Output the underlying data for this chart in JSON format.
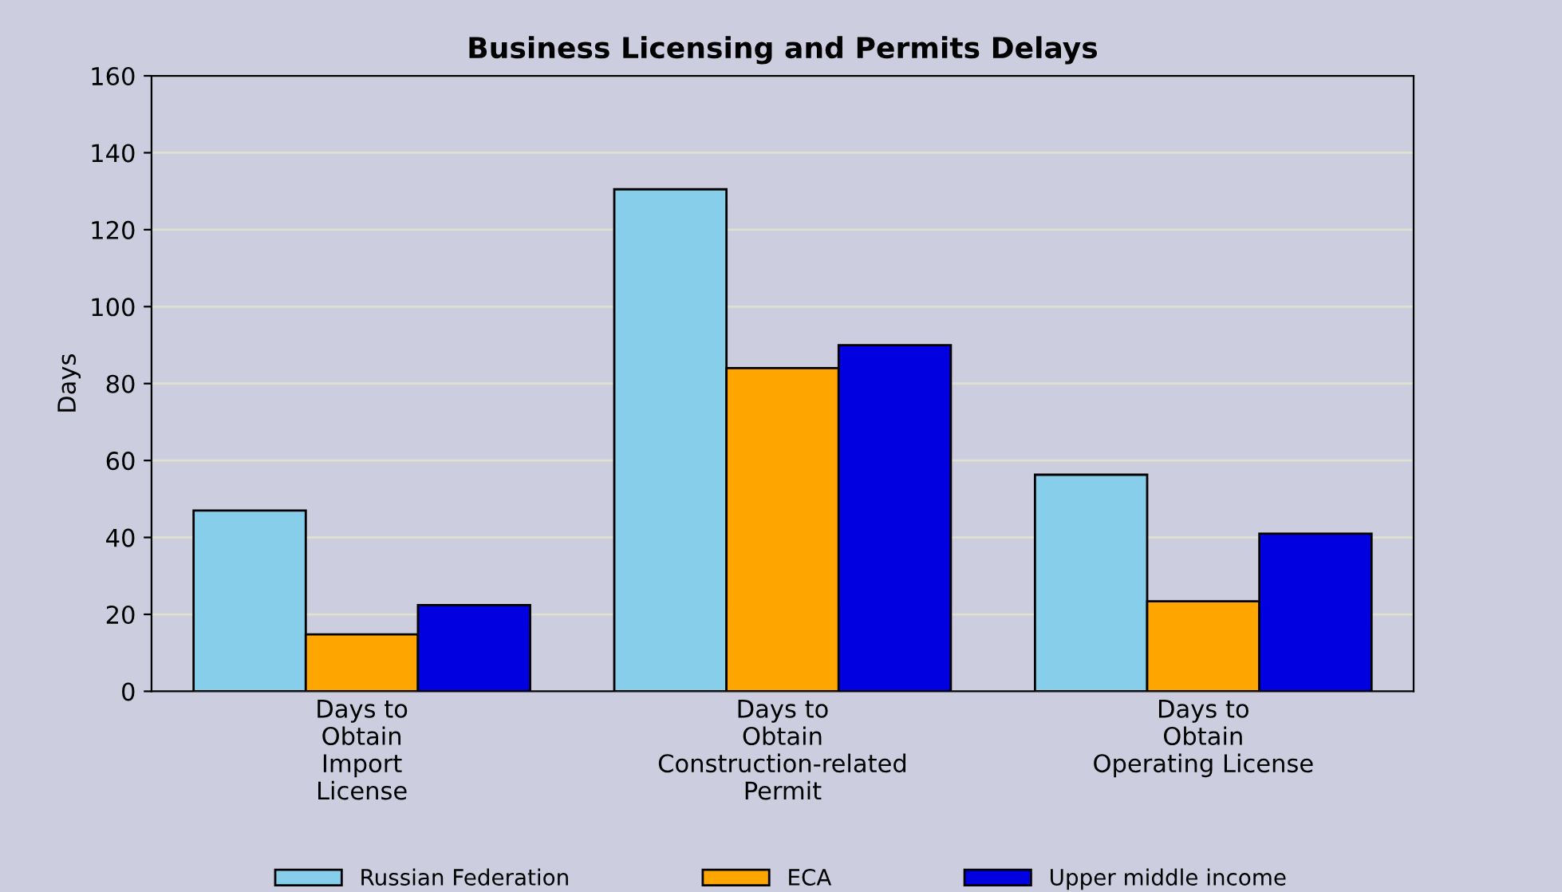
{
  "chart_data": {
    "type": "bar",
    "title": "Business Licensing and Permits Delays",
    "ylabel": "Days",
    "categories": [
      "Days to\nObtain\nImport\nLicense",
      "Days to\nObtain\nConstruction-related\nPermit",
      "Days to\nObtain\nOperating License"
    ],
    "series": [
      {
        "name": "Russian Federation",
        "color": "#87ceeb",
        "values": [
          47,
          130.5,
          56.3
        ]
      },
      {
        "name": "ECA",
        "color": "#ffa500",
        "values": [
          14.8,
          84,
          23.4
        ]
      },
      {
        "name": "Upper middle income",
        "color": "#0000e0",
        "values": [
          22.4,
          90,
          41
        ]
      }
    ],
    "ylim": [
      0,
      160
    ],
    "yticks": [
      0,
      20,
      40,
      60,
      80,
      100,
      120,
      140,
      160
    ],
    "grid": "y",
    "legend": "bottom"
  }
}
